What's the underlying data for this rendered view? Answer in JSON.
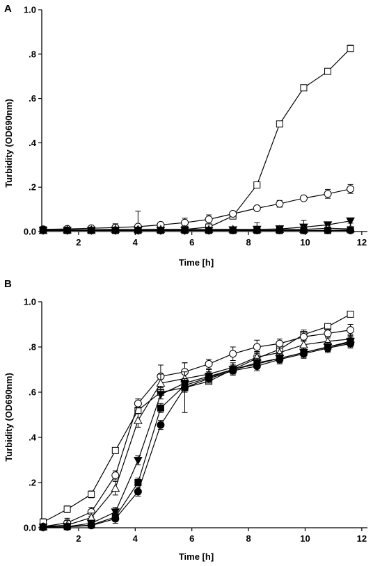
{
  "chart_data": [
    {
      "panel": "A",
      "type": "line",
      "xlabel": "Time [h]",
      "ylabel": "Turbidity (OD690nm)",
      "xlim": [
        0.7,
        12.2
      ],
      "ylim": [
        0.0,
        1.0
      ],
      "x_ticks": [
        2,
        4,
        6,
        8,
        10,
        12
      ],
      "x_tick_labels": [
        "2",
        "4",
        "6",
        "8",
        "10",
        "12"
      ],
      "y_ticks": [
        0.0,
        0.2,
        0.4,
        0.6,
        0.8,
        1.0
      ],
      "y_tick_labels": [
        "0.0",
        ".2",
        ".4",
        ".6",
        ".8",
        "1.0"
      ],
      "grid": false,
      "series": [
        {
          "marker": "square-open",
          "x": [
            0.75,
            1.6,
            2.45,
            3.3,
            4.1,
            4.9,
            5.75,
            6.6,
            7.45,
            8.3,
            9.1,
            9.95,
            10.8,
            11.6
          ],
          "y": [
            0.005,
            0.005,
            0.005,
            0.005,
            0.005,
            0.008,
            0.01,
            0.02,
            0.07,
            0.21,
            0.485,
            0.648,
            0.722,
            0.825
          ],
          "err": [
            0.005,
            0.005,
            0.005,
            0.005,
            0.005,
            0.005,
            0.005,
            0.01,
            0.01,
            0.005,
            0.005,
            0.005,
            0.005,
            0.015
          ]
        },
        {
          "marker": "circle-open",
          "x": [
            0.75,
            1.6,
            2.45,
            3.3,
            4.1,
            4.9,
            5.75,
            6.6,
            7.45,
            8.3,
            9.1,
            9.95,
            10.8,
            11.6
          ],
          "y": [
            0.01,
            0.012,
            0.015,
            0.018,
            0.022,
            0.03,
            0.04,
            0.055,
            0.08,
            0.105,
            0.125,
            0.15,
            0.17,
            0.192
          ],
          "err": [
            0.005,
            0.01,
            0.01,
            0.01,
            0.07,
            0.01,
            0.02,
            0.02,
            0.01,
            0.01,
            0.015,
            0.01,
            0.02,
            0.02
          ]
        },
        {
          "marker": "triangle-down-filled",
          "x": [
            0.75,
            1.6,
            2.45,
            3.3,
            4.1,
            4.9,
            5.75,
            6.6,
            7.45,
            8.3,
            9.1,
            9.95,
            10.8,
            11.6
          ],
          "y": [
            0.005,
            0.005,
            0.005,
            0.005,
            0.005,
            0.005,
            0.005,
            0.005,
            0.008,
            0.01,
            0.012,
            0.02,
            0.03,
            0.048
          ],
          "err": [
            0.005,
            0.005,
            0.005,
            0.03,
            0.005,
            0.005,
            0.005,
            0.005,
            0.005,
            0.03,
            0.01,
            0.03,
            0.01,
            0.01
          ]
        },
        {
          "marker": "triangle-up-open",
          "x": [
            0.75,
            1.6,
            2.45,
            3.3,
            4.1,
            4.9,
            5.75,
            6.6,
            7.45,
            8.3,
            9.1,
            9.95,
            10.8,
            11.6
          ],
          "y": [
            0.005,
            0.008,
            0.008,
            0.01,
            0.01,
            0.01,
            0.01,
            0.01,
            0.01,
            0.01,
            0.01,
            0.01,
            0.015,
            0.012
          ],
          "err": [
            0.005,
            0.01,
            0.01,
            0.01,
            0.01,
            0.005,
            0.005,
            0.005,
            0.005,
            0.005,
            0.005,
            0.005,
            0.01,
            0.01
          ]
        },
        {
          "marker": "circle-filled",
          "x": [
            0.75,
            1.6,
            2.45,
            3.3,
            4.1,
            4.9,
            5.75,
            6.6,
            7.45,
            8.3,
            9.1,
            9.95,
            10.8,
            11.6
          ],
          "y": [
            0.005,
            0.005,
            0.005,
            0.005,
            0.005,
            0.005,
            0.005,
            0.005,
            0.005,
            0.005,
            0.005,
            0.005,
            0.005,
            0.005
          ],
          "err": [
            0.005,
            0.005,
            0.005,
            0.005,
            0.005,
            0.005,
            0.005,
            0.005,
            0.005,
            0.005,
            0.005,
            0.005,
            0.005,
            0.005
          ]
        },
        {
          "marker": "square-filled",
          "x": [
            0.75,
            1.6,
            2.45,
            3.3,
            4.1,
            4.9,
            5.75,
            6.6,
            7.45,
            8.3,
            9.1,
            9.95,
            10.8,
            11.6
          ],
          "y": [
            0.008,
            0.005,
            0.005,
            0.005,
            0.005,
            0.005,
            0.005,
            0.005,
            0.005,
            0.005,
            0.005,
            0.005,
            0.005,
            0.008
          ],
          "err": [
            0.005,
            0.005,
            0.005,
            0.005,
            0.005,
            0.005,
            0.005,
            0.005,
            0.005,
            0.005,
            0.005,
            0.005,
            0.005,
            0.005
          ]
        }
      ]
    },
    {
      "panel": "B",
      "type": "line",
      "xlabel": "Time [h]",
      "ylabel": "Turbidity (OD690nm)",
      "xlim": [
        0.7,
        12.2
      ],
      "ylim": [
        0.0,
        1.0
      ],
      "x_ticks": [
        2,
        4,
        6,
        8,
        10,
        12
      ],
      "x_tick_labels": [
        "2",
        "4",
        "6",
        "8",
        "10",
        "12"
      ],
      "y_ticks": [
        0.0,
        0.2,
        0.4,
        0.6,
        0.8,
        1.0
      ],
      "y_tick_labels": [
        "0.0",
        ".2",
        ".4",
        ".6",
        ".8",
        "1.0"
      ],
      "grid": false,
      "series": [
        {
          "marker": "square-open",
          "x": [
            0.75,
            1.6,
            2.45,
            3.3,
            4.1,
            4.9,
            5.75,
            6.6,
            7.45,
            8.3,
            9.1,
            9.95,
            10.8,
            11.6
          ],
          "y": [
            0.025,
            0.082,
            0.148,
            0.342,
            0.52,
            0.6,
            0.62,
            0.648,
            0.7,
            0.75,
            0.79,
            0.855,
            0.89,
            0.945
          ],
          "err": [
            0.015,
            0.015,
            0.015,
            0.01,
            0.01,
            0.01,
            0.11,
            0.01,
            0.02,
            0.03,
            0.03,
            0.02,
            0.01,
            0.01
          ]
        },
        {
          "marker": "circle-open",
          "x": [
            0.75,
            1.6,
            2.45,
            3.3,
            4.1,
            4.9,
            5.75,
            6.6,
            7.45,
            8.3,
            9.1,
            9.95,
            10.8,
            11.6
          ],
          "y": [
            0.005,
            0.022,
            0.07,
            0.232,
            0.55,
            0.67,
            0.69,
            0.725,
            0.77,
            0.8,
            0.815,
            0.845,
            0.86,
            0.875
          ],
          "err": [
            0.01,
            0.02,
            0.02,
            0.02,
            0.02,
            0.05,
            0.04,
            0.02,
            0.03,
            0.03,
            0.02,
            0.02,
            0.02,
            0.025
          ]
        },
        {
          "marker": "triangle-up-open",
          "x": [
            0.75,
            1.6,
            2.45,
            3.3,
            4.1,
            4.9,
            5.75,
            6.6,
            7.45,
            8.3,
            9.1,
            9.95,
            10.8,
            11.6
          ],
          "y": [
            0.005,
            0.012,
            0.045,
            0.175,
            0.475,
            0.64,
            0.66,
            0.68,
            0.71,
            0.755,
            0.775,
            0.81,
            0.825,
            0.835
          ],
          "err": [
            0.01,
            0.02,
            0.02,
            0.03,
            0.03,
            0.04,
            0.03,
            0.02,
            0.02,
            0.02,
            0.02,
            0.02,
            0.02,
            0.02
          ]
        },
        {
          "marker": "triangle-down-filled",
          "x": [
            0.75,
            1.6,
            2.45,
            3.3,
            4.1,
            4.9,
            5.75,
            6.6,
            7.45,
            8.3,
            9.1,
            9.95,
            10.8,
            11.6
          ],
          "y": [
            0.003,
            0.005,
            0.02,
            0.07,
            0.298,
            0.59,
            0.64,
            0.67,
            0.7,
            0.73,
            0.75,
            0.775,
            0.8,
            0.825
          ],
          "err": [
            0.005,
            0.01,
            0.01,
            0.02,
            0.02,
            0.02,
            0.02,
            0.02,
            0.02,
            0.02,
            0.02,
            0.02,
            0.02,
            0.02
          ]
        },
        {
          "marker": "square-filled",
          "x": [
            0.75,
            1.6,
            2.45,
            3.3,
            4.1,
            4.9,
            5.75,
            6.6,
            7.45,
            8.3,
            9.1,
            9.95,
            10.8,
            11.6
          ],
          "y": [
            0.003,
            0.005,
            0.012,
            0.048,
            0.2,
            0.53,
            0.63,
            0.665,
            0.7,
            0.725,
            0.75,
            0.775,
            0.8,
            0.82
          ],
          "err": [
            0.005,
            0.01,
            0.01,
            0.02,
            0.02,
            0.02,
            0.02,
            0.02,
            0.02,
            0.02,
            0.02,
            0.02,
            0.02,
            0.02
          ]
        },
        {
          "marker": "circle-filled",
          "x": [
            0.75,
            1.6,
            2.45,
            3.3,
            4.1,
            4.9,
            5.75,
            6.6,
            7.45,
            8.3,
            9.1,
            9.95,
            10.8,
            11.6
          ],
          "y": [
            0.002,
            0.004,
            0.01,
            0.04,
            0.16,
            0.455,
            0.62,
            0.66,
            0.695,
            0.715,
            0.745,
            0.77,
            0.795,
            0.815
          ],
          "err": [
            0.005,
            0.01,
            0.01,
            0.02,
            0.02,
            0.02,
            0.02,
            0.02,
            0.02,
            0.02,
            0.02,
            0.02,
            0.02,
            0.02
          ]
        }
      ]
    }
  ]
}
